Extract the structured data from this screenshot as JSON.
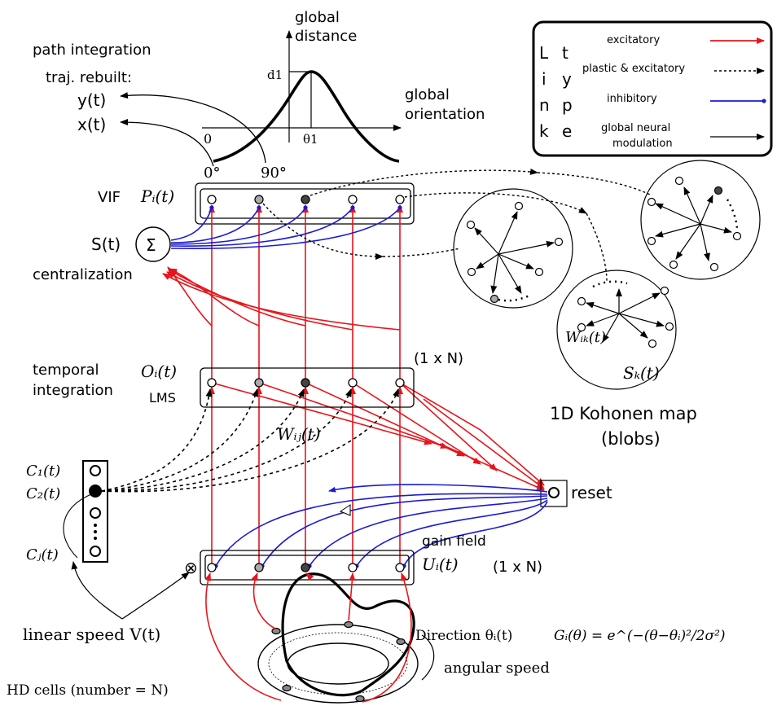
{
  "labels": {
    "path_integration": "path integration",
    "traj_rebuilt": "traj. rebuilt:",
    "y_t": "y(t)",
    "x_t": "x(t)",
    "global_distance_1": "global",
    "global_distance_2": "distance",
    "global_orientation_1": "global",
    "global_orientation_2": "orientation",
    "d1": "d1",
    "theta1": "θ1",
    "zero_axis": "0",
    "zero_deg": "0°",
    "ninety_deg": "90°",
    "vif": "VIF",
    "p_i": "Pᵢ(t)",
    "s_t": "S(t)",
    "sigma": "Σ",
    "centralization": "centralization",
    "temporal_1": "temporal",
    "temporal_2": "integration",
    "o_i": "Oᵢ(t)",
    "lms": "LMS",
    "one_by_n_top": "(1 x N)",
    "w_ij": "Wᵢⱼ(t)",
    "c1": "C₁(t)",
    "c2": "C₂(t)",
    "cj": "Cⱼ(t)",
    "reset": "reset",
    "gain_field": "gain field",
    "u_i": "Uᵢ(t)",
    "one_by_n_bottom": "(1 x N)",
    "otimes": "⊗",
    "linear_speed": "linear speed V(t)",
    "direction": "Direction θᵢ(t)",
    "gaussian": "Gᵢ(θ) = e^(−(θ−θᵢ)²/2σ²)",
    "hd_cells": "HD cells (number = N)",
    "angular_speed": "angular speed",
    "w_ik": "Wᵢₖ(t)",
    "s_k": "Sₖ(t)",
    "kohonen_1": "1D Kohonen map",
    "kohonen_2": "(blobs)"
  },
  "legend": {
    "title_letters": [
      "L",
      "t",
      "i",
      "y",
      "n",
      "p",
      "k",
      "e"
    ],
    "items": [
      {
        "label": "excitatory",
        "color": "#e8141b"
      },
      {
        "label": "plastic & excitatory",
        "color": "#000000"
      },
      {
        "label": "inhibitory",
        "color": "#1a1ad6"
      },
      {
        "label": "global neural",
        "label2": "modulation",
        "color": "#000000"
      }
    ]
  },
  "colors": {
    "excitatory": "#e8141b",
    "inhibitory": "#1a1ad6",
    "stroke": "#000000"
  }
}
